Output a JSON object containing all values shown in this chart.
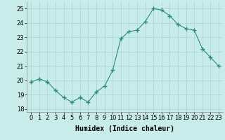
{
  "x": [
    0,
    1,
    2,
    3,
    4,
    5,
    6,
    7,
    8,
    9,
    10,
    11,
    12,
    13,
    14,
    15,
    16,
    17,
    18,
    19,
    20,
    21,
    22,
    23
  ],
  "y": [
    19.9,
    20.1,
    19.9,
    19.3,
    18.8,
    18.5,
    18.8,
    18.5,
    19.2,
    19.6,
    20.7,
    22.9,
    23.4,
    23.5,
    24.1,
    25.0,
    24.9,
    24.5,
    23.9,
    23.6,
    23.5,
    22.2,
    21.6,
    21.0
  ],
  "line_color": "#2e8b7a",
  "marker": "+",
  "marker_size": 4,
  "bg_color": "#c8ece9",
  "grid_color": "#a8d4d0",
  "xlabel": "Humidex (Indice chaleur)",
  "ylim": [
    17.8,
    25.5
  ],
  "xlim": [
    -0.5,
    23.5
  ],
  "yticks": [
    18,
    19,
    20,
    21,
    22,
    23,
    24,
    25
  ],
  "xticks": [
    0,
    1,
    2,
    3,
    4,
    5,
    6,
    7,
    8,
    9,
    10,
    11,
    12,
    13,
    14,
    15,
    16,
    17,
    18,
    19,
    20,
    21,
    22,
    23
  ],
  "axis_fontsize": 6.5,
  "tick_fontsize": 6.0,
  "xlabel_fontsize": 7.0
}
